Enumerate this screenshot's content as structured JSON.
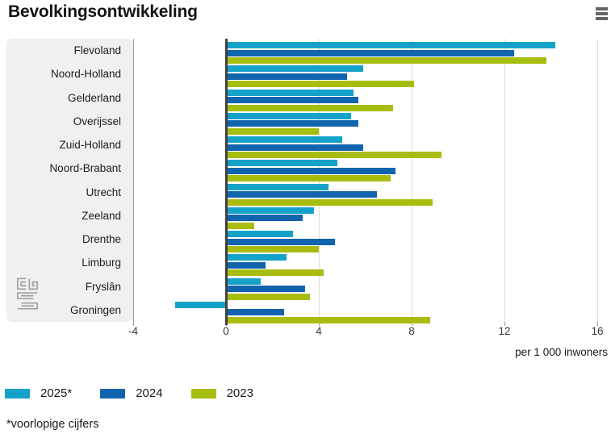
{
  "header": {
    "title": "Bevolkingsontwikkeling"
  },
  "chart_data": {
    "type": "bar",
    "orientation": "horizontal",
    "title": "Bevolkingsontwikkeling",
    "xlabel": "per 1 000 inwoners",
    "x_ticks": [
      -4,
      0,
      4,
      8,
      12,
      16
    ],
    "xlim": [
      -4,
      16.4
    ],
    "grid": true,
    "legend_position": "bottom",
    "categories": [
      "Flevoland",
      "Noord-Holland",
      "Gelderland",
      "Overijssel",
      "Zuid-Holland",
      "Noord-Brabant",
      "Utrecht",
      "Zeeland",
      "Drenthe",
      "Limburg",
      "Fryslân",
      "Groningen"
    ],
    "series": [
      {
        "name": "2025*",
        "color": "#15a2c8",
        "values": [
          14.2,
          5.9,
          5.5,
          5.4,
          5.0,
          4.8,
          4.4,
          3.8,
          2.9,
          2.6,
          1.5,
          -2.2
        ]
      },
      {
        "name": "2024",
        "color": "#1164ae",
        "values": [
          12.4,
          5.2,
          5.7,
          5.7,
          5.9,
          7.3,
          6.5,
          3.3,
          4.7,
          1.7,
          3.4,
          2.5
        ]
      },
      {
        "name": "2023",
        "color": "#a9bd10",
        "values": [
          13.8,
          8.1,
          7.2,
          4.0,
          9.3,
          7.1,
          8.9,
          1.2,
          4.0,
          4.2,
          3.6,
          8.8
        ]
      }
    ]
  },
  "footnote": "*voorlopige cijfers",
  "icons": {
    "context_menu": "hamburger-menu-icon",
    "logo": "cbs-logo"
  },
  "colors": {
    "zero_axis": "#404040",
    "gridline": "#dedede",
    "label_box": "#f0f0f0"
  }
}
